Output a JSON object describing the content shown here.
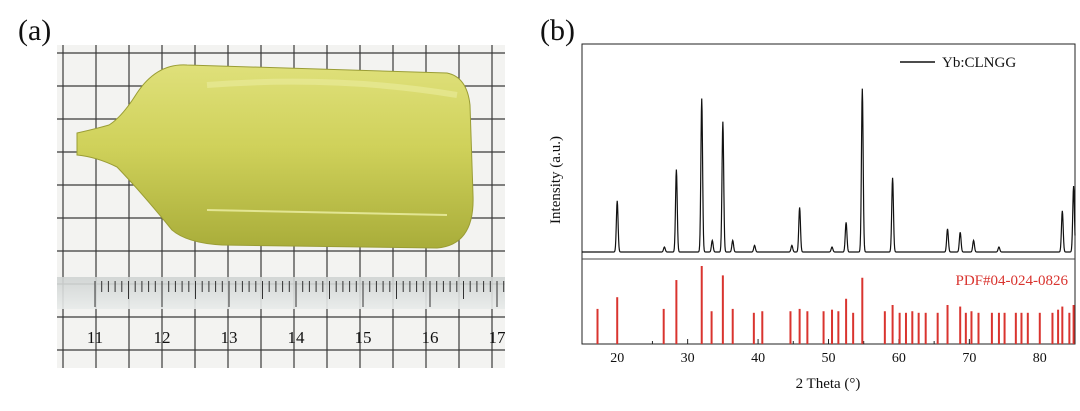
{
  "figure": {
    "panel_a_label": "(a)",
    "panel_b_label": "(b)"
  },
  "photo": {
    "ruler_numbers": [
      "11",
      "12",
      "13",
      "14",
      "15",
      "16",
      "17"
    ],
    "crystal_color": "#cfd25a",
    "paper_color": "#f3f3f1",
    "grid_color": "#3a3a3a"
  },
  "chart_data": {
    "type": "line",
    "xlabel": "2 Theta (°)",
    "ylabel": "Intensity (a.u.)",
    "xlim": [
      15,
      85
    ],
    "xticks": [
      20,
      30,
      40,
      50,
      60,
      70,
      80
    ],
    "legend": {
      "label": "Yb:CLNGG",
      "position": "top-right"
    },
    "series": [
      {
        "name": "Yb:CLNGG",
        "color": "#111111",
        "peaks": [
          {
            "x": 20.0,
            "y": 0.31
          },
          {
            "x": 26.7,
            "y": 0.03
          },
          {
            "x": 28.4,
            "y": 0.5
          },
          {
            "x": 32.0,
            "y": 0.93
          },
          {
            "x": 33.5,
            "y": 0.07
          },
          {
            "x": 35.0,
            "y": 0.79
          },
          {
            "x": 36.4,
            "y": 0.07
          },
          {
            "x": 39.5,
            "y": 0.04
          },
          {
            "x": 44.8,
            "y": 0.04
          },
          {
            "x": 45.9,
            "y": 0.27
          },
          {
            "x": 50.5,
            "y": 0.03
          },
          {
            "x": 52.5,
            "y": 0.18
          },
          {
            "x": 54.8,
            "y": 0.99
          },
          {
            "x": 59.1,
            "y": 0.45
          },
          {
            "x": 66.9,
            "y": 0.14
          },
          {
            "x": 68.7,
            "y": 0.12
          },
          {
            "x": 70.6,
            "y": 0.07
          },
          {
            "x": 74.2,
            "y": 0.03
          },
          {
            "x": 83.2,
            "y": 0.25
          },
          {
            "x": 84.8,
            "y": 0.4
          }
        ]
      },
      {
        "name": "PDF#04-024-0826",
        "color": "#d9342f",
        "sticks": [
          {
            "x": 17.2,
            "y": 0.45
          },
          {
            "x": 20.0,
            "y": 0.6
          },
          {
            "x": 26.6,
            "y": 0.45
          },
          {
            "x": 28.4,
            "y": 0.82
          },
          {
            "x": 32.0,
            "y": 1.0
          },
          {
            "x": 33.4,
            "y": 0.42
          },
          {
            "x": 35.0,
            "y": 0.88
          },
          {
            "x": 36.4,
            "y": 0.45
          },
          {
            "x": 39.4,
            "y": 0.4
          },
          {
            "x": 40.6,
            "y": 0.42
          },
          {
            "x": 44.6,
            "y": 0.42
          },
          {
            "x": 45.9,
            "y": 0.45
          },
          {
            "x": 47.0,
            "y": 0.42
          },
          {
            "x": 49.3,
            "y": 0.42
          },
          {
            "x": 50.5,
            "y": 0.44
          },
          {
            "x": 51.4,
            "y": 0.42
          },
          {
            "x": 52.5,
            "y": 0.58
          },
          {
            "x": 53.5,
            "y": 0.4
          },
          {
            "x": 54.8,
            "y": 0.85
          },
          {
            "x": 58.0,
            "y": 0.42
          },
          {
            "x": 59.1,
            "y": 0.5
          },
          {
            "x": 60.1,
            "y": 0.4
          },
          {
            "x": 61.0,
            "y": 0.4
          },
          {
            "x": 61.9,
            "y": 0.42
          },
          {
            "x": 62.8,
            "y": 0.4
          },
          {
            "x": 63.8,
            "y": 0.4
          },
          {
            "x": 65.5,
            "y": 0.4
          },
          {
            "x": 66.9,
            "y": 0.5
          },
          {
            "x": 68.7,
            "y": 0.48
          },
          {
            "x": 69.5,
            "y": 0.4
          },
          {
            "x": 70.3,
            "y": 0.42
          },
          {
            "x": 71.3,
            "y": 0.4
          },
          {
            "x": 73.2,
            "y": 0.4
          },
          {
            "x": 74.2,
            "y": 0.4
          },
          {
            "x": 75.0,
            "y": 0.4
          },
          {
            "x": 76.6,
            "y": 0.4
          },
          {
            "x": 77.4,
            "y": 0.4
          },
          {
            "x": 78.3,
            "y": 0.4
          },
          {
            "x": 80.0,
            "y": 0.4
          },
          {
            "x": 81.8,
            "y": 0.4
          },
          {
            "x": 82.6,
            "y": 0.44
          },
          {
            "x": 83.2,
            "y": 0.48
          },
          {
            "x": 84.2,
            "y": 0.4
          },
          {
            "x": 84.8,
            "y": 0.5
          }
        ]
      }
    ]
  }
}
